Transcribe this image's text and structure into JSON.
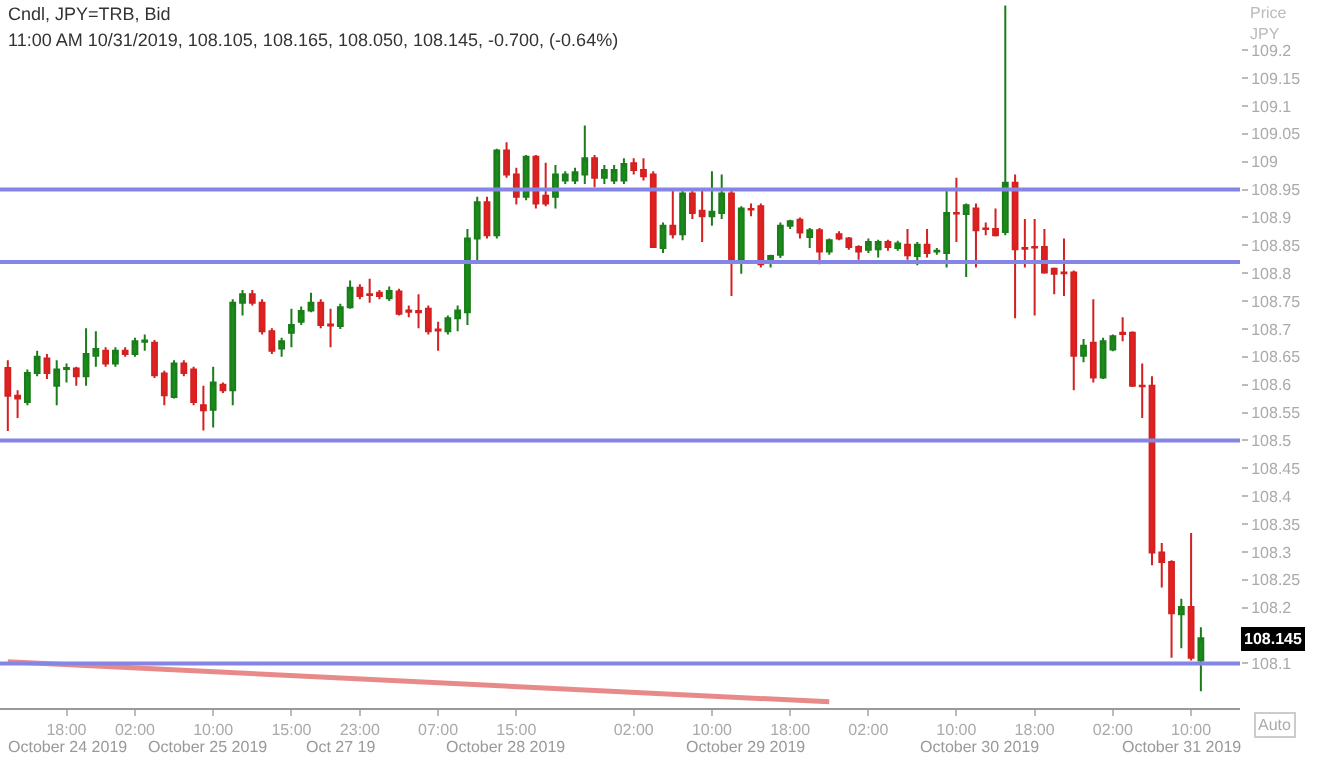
{
  "chart_data": {
    "type": "candlestick",
    "title": "Cndl, JPY=TRB, Bid",
    "subtitle": "11:00 AM 10/31/2019, 108.105, 108.165, 108.050, 108.145, -0.700, (-0.64%)",
    "ylabel": "Price\nJPY",
    "categories": [
      null,
      null,
      null,
      null,
      null,
      null,
      "18:00",
      null,
      null,
      null,
      null,
      null,
      null,
      "02:00",
      null,
      null,
      null,
      null,
      null,
      null,
      null,
      "10:00",
      null,
      null,
      null,
      null,
      null,
      null,
      null,
      "15:00",
      null,
      null,
      null,
      null,
      null,
      null,
      "23:00",
      null,
      null,
      null,
      null,
      null,
      null,
      null,
      "07:00",
      null,
      null,
      null,
      null,
      null,
      null,
      null,
      "15:00",
      null,
      null,
      null,
      null,
      null,
      null,
      null,
      null,
      null,
      null,
      null,
      "02:00",
      null,
      null,
      null,
      null,
      null,
      null,
      null,
      "10:00",
      null,
      null,
      null,
      null,
      null,
      null,
      null,
      "18:00",
      null,
      null,
      null,
      null,
      null,
      null,
      null,
      "02:00",
      null,
      null,
      null,
      null,
      null,
      null,
      null,
      null,
      "10:00",
      null,
      null,
      null,
      null,
      null,
      null,
      null,
      "18:00",
      null,
      null,
      null,
      null,
      null,
      null,
      null,
      "02:00",
      null,
      null,
      null,
      null,
      null,
      null,
      null,
      "10:00",
      null
    ],
    "ohlc": [
      [
        108.63,
        108.644,
        108.517,
        108.58
      ],
      [
        108.58,
        108.59,
        108.54,
        108.575
      ],
      [
        108.569,
        108.627,
        108.563,
        108.621
      ],
      [
        108.621,
        108.661,
        108.615,
        108.65
      ],
      [
        108.647,
        108.655,
        108.61,
        108.621
      ],
      [
        108.598,
        108.644,
        108.563,
        108.627
      ],
      [
        108.628,
        108.638,
        108.604,
        108.63
      ],
      [
        108.629,
        108.632,
        108.598,
        108.615
      ],
      [
        108.615,
        108.701,
        108.598,
        108.655
      ],
      [
        108.652,
        108.696,
        108.632,
        108.664
      ],
      [
        108.661,
        108.667,
        108.632,
        108.638
      ],
      [
        108.638,
        108.667,
        108.632,
        108.661
      ],
      [
        108.661,
        108.667,
        108.65,
        108.655
      ],
      [
        108.655,
        108.684,
        108.65,
        108.678
      ],
      [
        108.677,
        108.69,
        108.661,
        108.679
      ],
      [
        108.675,
        108.68,
        108.612,
        108.617
      ],
      [
        108.62,
        108.625,
        108.563,
        108.581
      ],
      [
        108.578,
        108.644,
        108.575,
        108.638
      ],
      [
        108.638,
        108.644,
        108.615,
        108.621
      ],
      [
        108.627,
        108.632,
        108.563,
        108.569
      ],
      [
        108.563,
        108.598,
        108.518,
        108.554
      ],
      [
        108.555,
        108.632,
        108.523,
        108.604
      ],
      [
        108.6,
        108.604,
        108.585,
        108.59
      ],
      [
        108.59,
        108.753,
        108.563,
        108.747
      ],
      [
        108.747,
        108.77,
        108.724,
        108.762
      ],
      [
        108.762,
        108.77,
        108.742,
        108.747
      ],
      [
        108.747,
        108.753,
        108.69,
        108.696
      ],
      [
        108.696,
        108.701,
        108.655,
        108.661
      ],
      [
        108.665,
        108.684,
        108.65,
        108.678
      ],
      [
        108.693,
        108.736,
        108.667,
        108.707
      ],
      [
        108.713,
        108.74,
        108.707,
        108.732
      ],
      [
        108.733,
        108.765,
        108.73,
        108.747
      ],
      [
        108.747,
        108.753,
        108.701,
        108.707
      ],
      [
        108.708,
        108.736,
        108.667,
        108.706
      ],
      [
        108.705,
        108.745,
        108.7,
        108.739
      ],
      [
        108.739,
        108.787,
        108.736,
        108.774
      ],
      [
        108.774,
        108.78,
        108.753,
        108.759
      ],
      [
        108.762,
        108.79,
        108.747,
        108.761
      ],
      [
        108.765,
        108.77,
        108.753,
        108.759
      ],
      [
        108.755,
        108.776,
        108.75,
        108.768
      ],
      [
        108.767,
        108.772,
        108.724,
        108.727
      ],
      [
        108.733,
        108.742,
        108.721,
        108.731
      ],
      [
        108.732,
        108.762,
        108.701,
        108.73
      ],
      [
        108.736,
        108.742,
        108.69,
        108.696
      ],
      [
        108.699,
        108.713,
        108.661,
        108.697
      ],
      [
        108.696,
        108.724,
        108.69,
        108.719
      ],
      [
        108.719,
        108.742,
        108.696,
        108.733
      ],
      [
        108.73,
        108.879,
        108.707,
        108.862
      ],
      [
        108.862,
        108.937,
        108.822,
        108.927
      ],
      [
        108.927,
        108.937,
        108.862,
        108.868
      ],
      [
        108.868,
        109.023,
        108.862,
        109.02
      ],
      [
        109.02,
        109.035,
        108.971,
        108.977
      ],
      [
        108.977,
        108.989,
        108.923,
        108.937
      ],
      [
        108.937,
        109.012,
        108.931,
        109.009
      ],
      [
        109.009,
        109.012,
        108.916,
        108.925
      ],
      [
        108.939,
        108.998,
        108.92,
        108.925
      ],
      [
        108.937,
        108.994,
        108.916,
        108.977
      ],
      [
        108.966,
        108.983,
        108.96,
        108.977
      ],
      [
        108.966,
        108.989,
        108.96,
        108.981
      ],
      [
        108.977,
        109.065,
        108.96,
        109.006
      ],
      [
        109.006,
        109.012,
        108.954,
        108.971
      ],
      [
        108.971,
        108.994,
        108.96,
        108.985
      ],
      [
        108.966,
        108.994,
        108.96,
        108.985
      ],
      [
        108.966,
        109.006,
        108.96,
        108.996
      ],
      [
        108.997,
        109.006,
        108.977,
        108.985
      ],
      [
        108.985,
        109.006,
        108.966,
        108.974
      ],
      [
        108.977,
        108.983,
        108.845,
        108.847
      ],
      [
        108.845,
        108.891,
        108.836,
        108.885
      ],
      [
        108.885,
        108.948,
        108.862,
        108.87
      ],
      [
        108.87,
        108.948,
        108.859,
        108.943
      ],
      [
        108.943,
        108.948,
        108.897,
        108.908
      ],
      [
        108.912,
        108.948,
        108.856,
        108.902
      ],
      [
        108.902,
        108.983,
        108.885,
        108.91
      ],
      [
        108.908,
        108.977,
        108.897,
        108.943
      ],
      [
        108.943,
        108.948,
        108.759,
        108.824
      ],
      [
        108.824,
        108.92,
        108.799,
        108.916
      ],
      [
        108.915,
        108.925,
        108.902,
        108.914
      ],
      [
        108.92,
        108.925,
        108.81,
        108.816
      ],
      [
        108.82,
        108.833,
        108.81,
        108.831
      ],
      [
        108.833,
        108.891,
        108.827,
        108.885
      ],
      [
        108.885,
        108.896,
        108.879,
        108.893
      ],
      [
        108.896,
        108.9,
        108.862,
        108.873
      ],
      [
        108.865,
        108.881,
        108.845,
        108.877
      ],
      [
        108.877,
        108.881,
        108.816,
        108.839
      ],
      [
        108.839,
        108.862,
        108.833,
        108.859
      ],
      [
        108.87,
        108.875,
        108.859,
        108.862
      ],
      [
        108.862,
        108.865,
        108.842,
        108.847
      ],
      [
        108.847,
        108.85,
        108.824,
        108.839
      ],
      [
        108.842,
        108.862,
        108.836,
        108.856
      ],
      [
        108.843,
        108.86,
        108.828,
        108.856
      ],
      [
        108.856,
        108.86,
        108.84,
        108.847
      ],
      [
        108.845,
        108.858,
        108.84,
        108.853
      ],
      [
        108.851,
        108.879,
        108.824,
        108.832
      ],
      [
        108.831,
        108.856,
        108.814,
        108.851
      ],
      [
        108.851,
        108.879,
        108.828,
        108.836
      ],
      [
        108.839,
        108.845,
        108.833,
        108.84
      ],
      [
        108.836,
        108.948,
        108.81,
        108.908
      ],
      [
        108.908,
        108.971,
        108.856,
        108.907
      ],
      [
        108.906,
        108.925,
        108.793,
        108.922
      ],
      [
        108.916,
        108.925,
        108.81,
        108.877
      ],
      [
        108.88,
        108.891,
        108.868,
        108.879
      ],
      [
        108.879,
        108.916,
        108.866,
        108.868
      ],
      [
        108.874,
        109.28,
        108.868,
        108.962
      ],
      [
        108.962,
        108.977,
        108.719,
        108.843
      ],
      [
        108.845,
        108.897,
        108.81,
        108.844
      ],
      [
        108.847,
        108.897,
        108.724,
        108.846
      ],
      [
        108.847,
        108.879,
        108.799,
        108.801
      ],
      [
        108.808,
        108.81,
        108.762,
        108.799
      ],
      [
        108.801,
        108.862,
        108.759,
        108.8
      ],
      [
        108.801,
        108.805,
        108.59,
        108.652
      ],
      [
        108.652,
        108.682,
        108.64,
        108.67
      ],
      [
        108.675,
        108.753,
        108.604,
        108.613
      ],
      [
        108.613,
        108.684,
        108.61,
        108.678
      ],
      [
        108.663,
        108.69,
        108.66,
        108.687
      ],
      [
        108.693,
        108.721,
        108.678,
        108.691
      ],
      [
        108.693,
        108.696,
        108.596,
        108.598
      ],
      [
        108.598,
        108.638,
        108.54,
        108.597
      ],
      [
        108.598,
        108.615,
        108.276,
        108.299
      ],
      [
        108.299,
        108.316,
        108.236,
        108.282
      ],
      [
        108.282,
        108.285,
        108.11,
        108.19
      ],
      [
        108.188,
        108.216,
        108.127,
        108.201
      ],
      [
        108.201,
        108.334,
        108.105,
        108.11
      ],
      [
        108.105,
        108.165,
        108.05,
        108.145
      ]
    ],
    "series": [
      {
        "type": "line",
        "values": [
          108.103,
          null,
          null,
          null,
          null,
          null,
          null,
          null,
          null,
          null,
          null,
          null,
          null,
          null,
          null,
          null,
          null,
          null,
          null,
          null,
          null,
          null,
          null,
          null,
          null,
          null,
          null,
          null,
          null,
          null,
          null,
          null,
          null,
          null,
          null,
          null,
          null,
          null,
          null,
          null,
          null,
          null,
          null,
          null,
          null,
          null,
          null,
          null,
          null,
          null,
          null,
          null,
          null,
          null,
          null,
          null,
          null,
          null,
          null,
          null,
          null,
          null,
          null,
          null,
          null,
          null,
          null,
          null,
          null,
          null,
          null,
          null,
          null,
          null,
          null,
          null,
          null,
          null,
          null,
          null,
          null,
          null,
          null,
          null,
          108.031,
          null,
          null,
          null,
          null,
          null,
          null,
          null,
          null,
          null,
          null,
          null,
          null,
          null,
          null,
          null,
          null,
          null,
          null,
          null,
          null,
          null,
          null,
          null,
          null,
          null,
          null,
          null,
          null,
          null,
          null,
          null,
          null,
          null,
          null,
          null,
          null,
          null,
          null
        ],
        "color": "#e88a8a"
      }
    ],
    "ref_lines": [
      {
        "axis": "y",
        "value": 108.95,
        "color": "#8585e6"
      },
      {
        "axis": "y",
        "value": 108.82,
        "color": "#8585e6"
      },
      {
        "axis": "y",
        "value": 108.5,
        "color": "#8585e6"
      },
      {
        "axis": "y",
        "value": 108.1,
        "color": "#8585e6"
      }
    ],
    "annotations": [
      "October 24 2019",
      "October 25 2019",
      "Oct 27 19",
      "October 28 2019",
      "October 29 2019",
      "October 30 2019",
      "October 31 2019",
      "Auto",
      "108.145"
    ],
    "ylim": [
      108.02,
      109.29
    ],
    "yticks": [
      108.1,
      108.2,
      108.25,
      108.3,
      108.35,
      108.4,
      108.45,
      108.5,
      108.55,
      108.6,
      108.65,
      108.7,
      108.75,
      108.8,
      108.85,
      108.9,
      108.95,
      109,
      109.05,
      109.1,
      109.15,
      109.2
    ],
    "grid": false
  }
}
